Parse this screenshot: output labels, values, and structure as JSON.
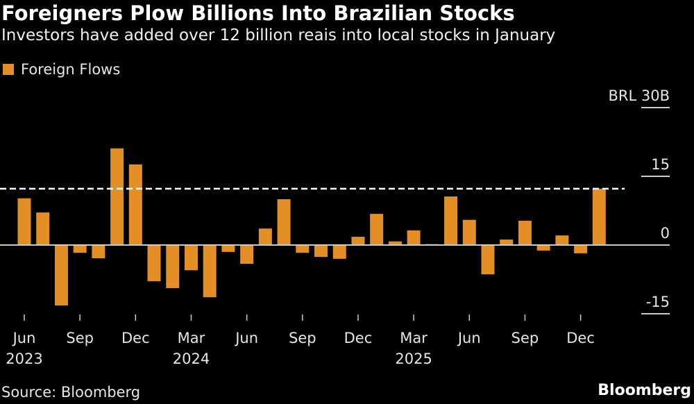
{
  "title": "Foreigners Plow Billions Into Brazilian Stocks",
  "subtitle": "Investors have added over 12 billion reais into local stocks in January",
  "source": "Source: Bloomberg",
  "brand": "Bloomberg",
  "colors": {
    "bar": "#e38f25",
    "background": "#000000",
    "axis": "#cccccc",
    "reference_line": "#ffffff"
  },
  "chart_data": {
    "type": "bar",
    "title": "Foreigners Plow Billions Into Brazilian Stocks",
    "subtitle": "Investors have added over 12 billion reais into local stocks in January",
    "legend": [
      {
        "name": "Foreign Flows",
        "color": "#e38f25"
      }
    ],
    "legend_position": "top-left",
    "xlabel": "",
    "ylabel": "",
    "y_unit_label": "BRL 30B",
    "ylim": [
      -15,
      30
    ],
    "y_ticks": [
      {
        "value": 30,
        "label": "BRL 30B"
      },
      {
        "value": 15,
        "label": "15"
      },
      {
        "value": 0,
        "label": "0"
      },
      {
        "value": -15,
        "label": "-15"
      }
    ],
    "y_axis_side": "right",
    "grid": false,
    "x_ticks": [
      {
        "index": 0,
        "label": "Jun",
        "year": "2023"
      },
      {
        "index": 3,
        "label": "Sep",
        "year": ""
      },
      {
        "index": 6,
        "label": "Dec",
        "year": ""
      },
      {
        "index": 9,
        "label": "Mar",
        "year": "2024"
      },
      {
        "index": 12,
        "label": "Jun",
        "year": ""
      },
      {
        "index": 15,
        "label": "Sep",
        "year": ""
      },
      {
        "index": 18,
        "label": "Dec",
        "year": ""
      },
      {
        "index": 21,
        "label": "Mar",
        "year": "2025"
      },
      {
        "index": 24,
        "label": "Jun",
        "year": ""
      },
      {
        "index": 27,
        "label": "Sep",
        "year": ""
      },
      {
        "index": 30,
        "label": "Dec",
        "year": ""
      }
    ],
    "categories": [
      "Jun 2023",
      "Jul 2023",
      "Aug 2023",
      "Sep 2023",
      "Oct 2023",
      "Nov 2023",
      "Dec 2023",
      "Jan 2024",
      "Feb 2024",
      "Mar 2024",
      "Apr 2024",
      "May 2024",
      "Jun 2024",
      "Jul 2024",
      "Aug 2024",
      "Sep 2024",
      "Oct 2024",
      "Nov 2024",
      "Dec 2024",
      "Jan 2025",
      "Feb 2025",
      "Mar 2025",
      "Apr 2025",
      "May 2025",
      "Jun 2025",
      "Jul 2025",
      "Aug 2025",
      "Sep 2025",
      "Oct 2025",
      "Nov 2025",
      "Dec 2025",
      "Jan 2026"
    ],
    "series": [
      {
        "name": "Foreign Flows",
        "values": [
          10.2,
          7.1,
          -13.2,
          -1.7,
          -2.9,
          21.1,
          17.6,
          -7.9,
          -9.4,
          -5.5,
          -11.4,
          -1.5,
          -4.1,
          3.6,
          10.0,
          -1.7,
          -2.6,
          -3.0,
          1.8,
          6.8,
          0.8,
          3.2,
          0.2,
          10.6,
          5.5,
          -6.4,
          1.2,
          5.3,
          -1.2,
          2.1,
          -1.8,
          12.3
        ]
      }
    ],
    "reference_line": {
      "value": 12.3,
      "style": "dashed"
    }
  }
}
